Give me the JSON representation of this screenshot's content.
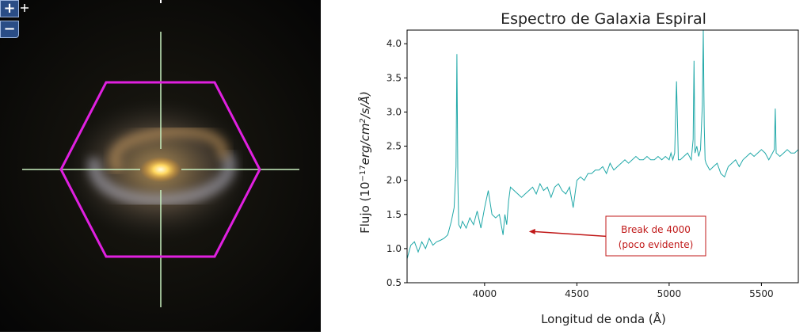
{
  "image_panel": {
    "zoom_in_label": "+",
    "zoom_out_label": "−",
    "hexagon_color": "#e020e0",
    "crosshair_color": "#c8f0c0"
  },
  "chart_data": {
    "type": "line",
    "title": "Espectro de Galaxia Espiral",
    "xlabel": "Longitud de onda (Å)",
    "ylabel_parts": {
      "prefix": "Flujo (10",
      "exp1": "−17",
      "middle": "erg/cm",
      "exp2": "2",
      "suffix": "/s/Å)"
    },
    "xlim": [
      3580,
      5700
    ],
    "ylim": [
      0.5,
      4.2
    ],
    "xticks": [
      4000,
      4500,
      5000,
      5500
    ],
    "yticks": [
      0.5,
      1.0,
      1.5,
      2.0,
      2.5,
      3.0,
      3.5,
      4.0
    ],
    "ytick_labels": [
      "0.5",
      "1.0",
      "1.5",
      "2.0",
      "2.5",
      "3.0",
      "3.5",
      "4.0"
    ],
    "series_color": "#20a8a8",
    "x": [
      3580,
      3600,
      3620,
      3640,
      3660,
      3680,
      3700,
      3720,
      3740,
      3760,
      3780,
      3800,
      3820,
      3835,
      3845,
      3850,
      3855,
      3860,
      3870,
      3880,
      3900,
      3920,
      3940,
      3960,
      3980,
      4000,
      4020,
      4040,
      4060,
      4080,
      4100,
      4110,
      4120,
      4130,
      4140,
      4160,
      4180,
      4200,
      4220,
      4240,
      4260,
      4280,
      4300,
      4320,
      4340,
      4360,
      4380,
      4400,
      4420,
      4440,
      4460,
      4480,
      4500,
      4520,
      4540,
      4560,
      4580,
      4600,
      4620,
      4640,
      4660,
      4680,
      4700,
      4720,
      4740,
      4760,
      4780,
      4800,
      4820,
      4840,
      4860,
      4880,
      4900,
      4920,
      4940,
      4960,
      4980,
      5000,
      5010,
      5020,
      5030,
      5040,
      5050,
      5060,
      5080,
      5100,
      5120,
      5130,
      5135,
      5140,
      5150,
      5160,
      5170,
      5180,
      5185,
      5190,
      5195,
      5200,
      5210,
      5220,
      5240,
      5260,
      5280,
      5300,
      5320,
      5340,
      5360,
      5380,
      5400,
      5420,
      5440,
      5460,
      5480,
      5500,
      5520,
      5540,
      5560,
      5570,
      5575,
      5580,
      5600,
      5620,
      5640,
      5660,
      5680,
      5700
    ],
    "y": [
      0.85,
      1.05,
      1.1,
      0.95,
      1.1,
      1.0,
      1.15,
      1.05,
      1.1,
      1.12,
      1.15,
      1.2,
      1.4,
      1.6,
      2.2,
      3.85,
      2.0,
      1.35,
      1.3,
      1.4,
      1.3,
      1.45,
      1.35,
      1.55,
      1.3,
      1.6,
      1.85,
      1.5,
      1.45,
      1.5,
      1.2,
      1.5,
      1.35,
      1.7,
      1.9,
      1.85,
      1.8,
      1.75,
      1.8,
      1.85,
      1.9,
      1.8,
      1.95,
      1.85,
      1.9,
      1.75,
      1.9,
      1.95,
      1.85,
      1.8,
      1.9,
      1.6,
      2.0,
      2.05,
      2.0,
      2.1,
      2.1,
      2.15,
      2.15,
      2.2,
      2.1,
      2.25,
      2.15,
      2.2,
      2.25,
      2.3,
      2.25,
      2.3,
      2.35,
      2.3,
      2.3,
      2.35,
      2.3,
      2.3,
      2.35,
      2.3,
      2.35,
      2.3,
      2.4,
      2.3,
      2.4,
      3.45,
      2.3,
      2.3,
      2.35,
      2.4,
      2.3,
      2.6,
      3.75,
      2.4,
      2.5,
      2.35,
      2.45,
      3.1,
      4.2,
      2.8,
      2.3,
      2.25,
      2.2,
      2.15,
      2.2,
      2.25,
      2.1,
      2.05,
      2.2,
      2.25,
      2.3,
      2.2,
      2.3,
      2.35,
      2.4,
      2.35,
      2.4,
      2.45,
      2.4,
      2.3,
      2.4,
      2.45,
      3.05,
      2.4,
      2.35,
      2.4,
      2.45,
      2.4,
      2.4,
      2.45
    ],
    "annotation": {
      "line1": "Break de 4000",
      "line2": "(poco evidente)",
      "arrow_target": [
        4240,
        1.25
      ],
      "color": "#c01818"
    }
  }
}
